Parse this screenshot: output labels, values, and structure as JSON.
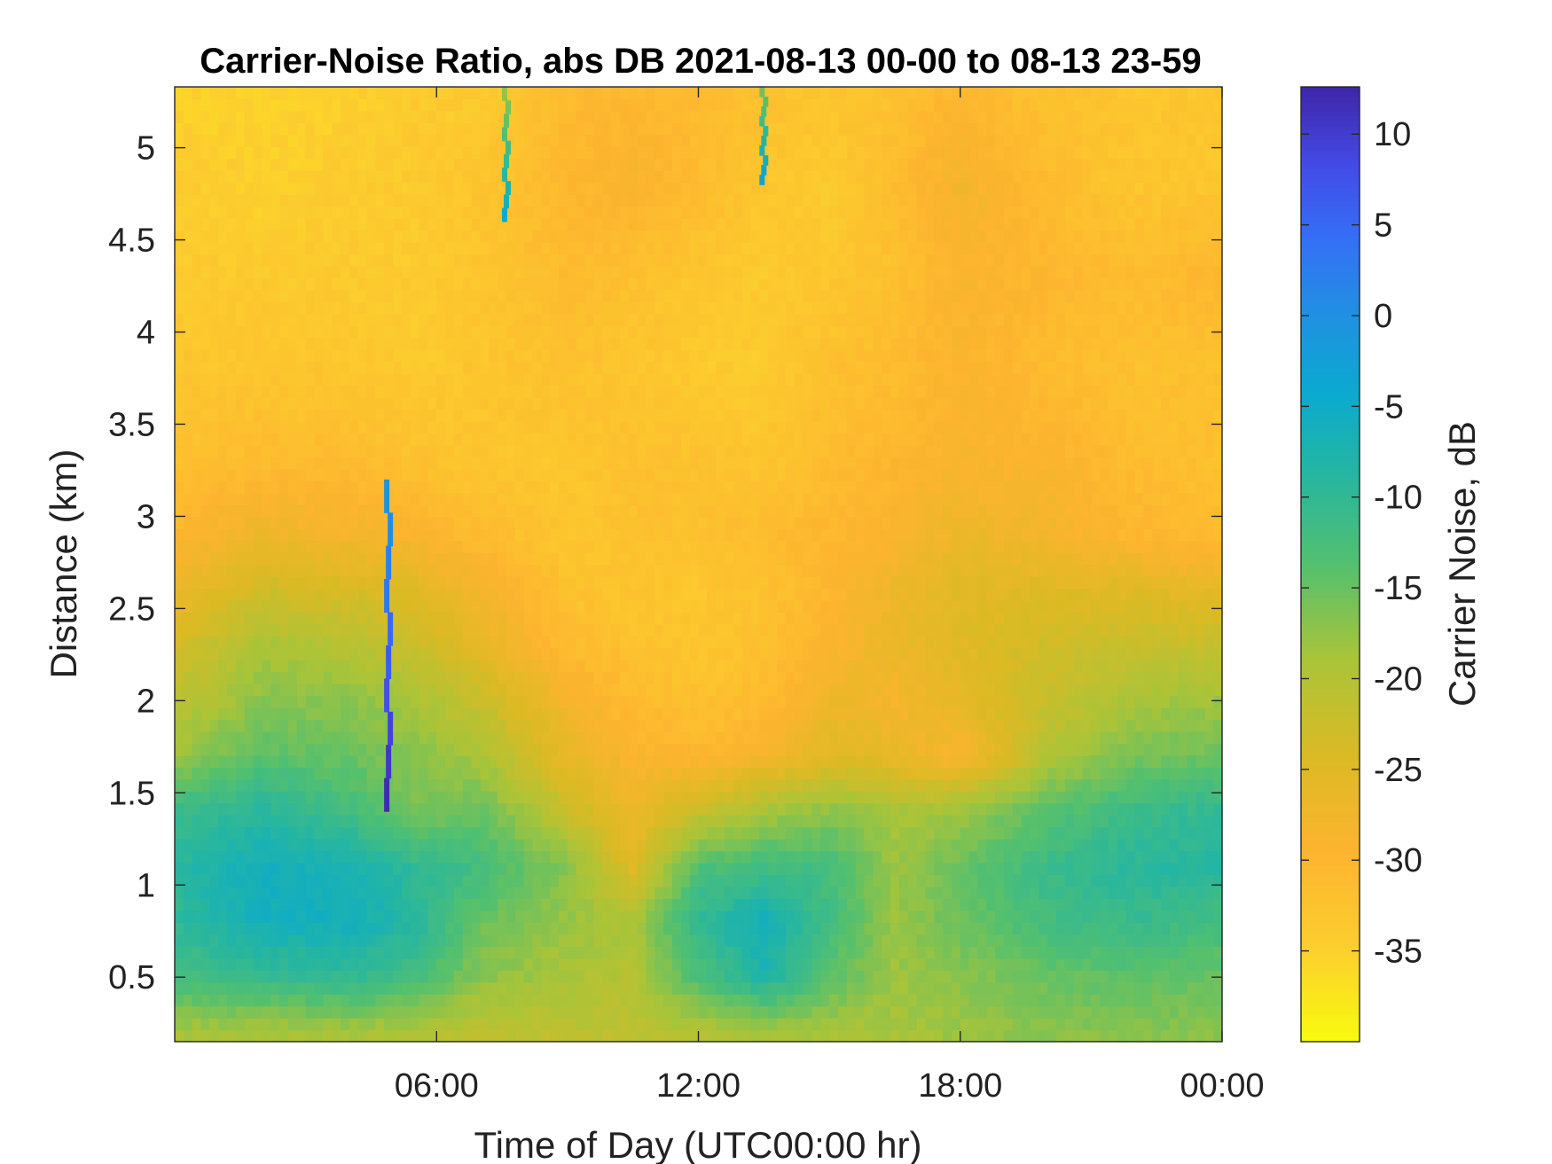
{
  "chart_data": {
    "type": "heatmap",
    "title": "Carrier-Noise Ratio, abs DB 2021-08-13 00-00 to 08-13 23-59",
    "xlabel": "Time of Day (UTC00:00 hr)",
    "ylabel": "Distance (km)",
    "colorbar_label": "Carrier Noise, dB",
    "colormap": "parula (reversed: yellow = low, dark blue = high)",
    "x_range_hours": [
      0,
      24
    ],
    "x_ticks": [
      {
        "hour": 6,
        "label": "06:00"
      },
      {
        "hour": 12,
        "label": "12:00"
      },
      {
        "hour": 18,
        "label": "18:00"
      },
      {
        "hour": 24,
        "label": "00:00"
      }
    ],
    "y_range_km": [
      0.15,
      5.33
    ],
    "y_ticks": [
      {
        "km": 0.5,
        "label": "0.5"
      },
      {
        "km": 1,
        "label": "1"
      },
      {
        "km": 1.5,
        "label": "1.5"
      },
      {
        "km": 2,
        "label": "2"
      },
      {
        "km": 2.5,
        "label": "2.5"
      },
      {
        "km": 3,
        "label": "3"
      },
      {
        "km": 3.5,
        "label": "3.5"
      },
      {
        "km": 4,
        "label": "4"
      },
      {
        "km": 4.5,
        "label": "4.5"
      },
      {
        "km": 5,
        "label": "5"
      }
    ],
    "color_range_db": [
      -40,
      12.6
    ],
    "colorbar_ticks": [
      {
        "db": 10,
        "label": "10"
      },
      {
        "db": 5,
        "label": "5"
      },
      {
        "db": 0,
        "label": "0"
      },
      {
        "db": -5,
        "label": "-5"
      },
      {
        "db": -10,
        "label": "-10"
      },
      {
        "db": -15,
        "label": "-15"
      },
      {
        "db": -20,
        "label": "-20"
      },
      {
        "db": -25,
        "label": "-25"
      },
      {
        "db": -30,
        "label": "-30"
      },
      {
        "db": -35,
        "label": "-35"
      }
    ],
    "grid": false,
    "approximate_field": {
      "description": "approximate estimate of CNR (dB) read from the image, rows = distance km, columns = hour",
      "hours": [
        0,
        2,
        4,
        5.5,
        7,
        9,
        10.5,
        12,
        13.5,
        15,
        16.5,
        18,
        20,
        22,
        24
      ],
      "distances_km": [
        0.2,
        0.5,
        0.8,
        1.1,
        1.4,
        1.7,
        2.0,
        2.3,
        2.6,
        2.9,
        3.3,
        3.8,
        4.3,
        4.8,
        5.3
      ],
      "values_db": [
        [
          -19,
          -19,
          -19,
          -20,
          -21,
          -21,
          -21,
          -20,
          -19,
          -19,
          -19,
          -18,
          -17,
          -17,
          -17
        ],
        [
          -12,
          -11,
          -10,
          -12,
          -17,
          -19,
          -20,
          -13,
          -8,
          -14,
          -18,
          -17,
          -15,
          -14,
          -15
        ],
        [
          -10,
          -6,
          -6,
          -9,
          -15,
          -18,
          -19,
          -10,
          -6,
          -12,
          -18,
          -15,
          -12,
          -11,
          -12
        ],
        [
          -9,
          -6,
          -7,
          -10,
          -12,
          -17,
          -25,
          -13,
          -12,
          -12,
          -18,
          -15,
          -11,
          -9,
          -9
        ],
        [
          -11,
          -9,
          -12,
          -16,
          -15,
          -22,
          -27,
          -22,
          -19,
          -17,
          -19,
          -18,
          -14,
          -11,
          -10
        ],
        [
          -18,
          -14,
          -15,
          -17,
          -19,
          -26,
          -29,
          -30,
          -28,
          -25,
          -26,
          -29,
          -20,
          -16,
          -15
        ],
        [
          -21,
          -17,
          -17,
          -19,
          -22,
          -28,
          -31,
          -32,
          -31,
          -27,
          -28,
          -26,
          -22,
          -19,
          -18
        ],
        [
          -24,
          -19,
          -20,
          -22,
          -26,
          -31,
          -32,
          -33,
          -32,
          -29,
          -27,
          -25,
          -23,
          -22,
          -22
        ],
        [
          -27,
          -23,
          -24,
          -25,
          -28,
          -32,
          -33,
          -33,
          -32,
          -30,
          -27,
          -25,
          -25,
          -25,
          -26
        ],
        [
          -30,
          -27,
          -28,
          -29,
          -31,
          -33,
          -32,
          -32,
          -31,
          -30,
          -29,
          -27,
          -28,
          -30,
          -31
        ],
        [
          -32,
          -31,
          -31,
          -32,
          -33,
          -33,
          -32,
          -32,
          -33,
          -31,
          -30,
          -29,
          -29,
          -31,
          -32
        ],
        [
          -33,
          -33,
          -33,
          -34,
          -33,
          -32,
          -33,
          -34,
          -34,
          -32,
          -31,
          -29,
          -31,
          -32,
          -32
        ],
        [
          -34,
          -34,
          -34,
          -34,
          -33,
          -31,
          -32,
          -33,
          -34,
          -33,
          -32,
          -29,
          -30,
          -31,
          -30
        ],
        [
          -34,
          -35,
          -34,
          -34,
          -33,
          -30,
          -29,
          -31,
          -33,
          -34,
          -31,
          -28,
          -31,
          -33,
          -33
        ],
        [
          -35,
          -35,
          -35,
          -34,
          -34,
          -31,
          -30,
          -31,
          -32,
          -33,
          -32,
          -30,
          -32,
          -33,
          -33
        ]
      ]
    },
    "approximate_features": [
      {
        "description": "narrow high-CNR vertical streak",
        "hour": 4.9,
        "km_range": [
          1.4,
          3.2
        ],
        "peak_db": 12
      },
      {
        "description": "high-CNR streaks near top",
        "hour": 7.6,
        "km_range": [
          4.6,
          5.33
        ],
        "peak_db": -5
      },
      {
        "description": "high-CNR streaks near top",
        "hour": 13.5,
        "km_range": [
          4.8,
          5.33
        ],
        "peak_db": -3
      }
    ]
  }
}
